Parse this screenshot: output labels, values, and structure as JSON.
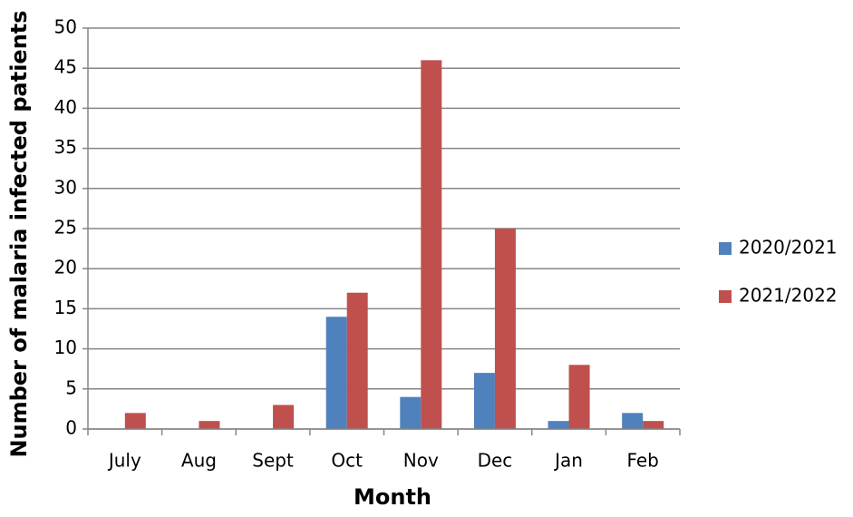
{
  "chart_data": {
    "type": "bar",
    "x_label": "Month",
    "y_label": "Number of malaria infected patients",
    "categories": [
      "July",
      "Aug",
      "Sept",
      "Oct",
      "Nov",
      "Dec",
      "Jan",
      "Feb"
    ],
    "series": [
      {
        "name": "2020/2021",
        "color": "#4f81bd",
        "values": [
          0,
          0,
          0,
          14,
          4,
          7,
          1,
          2
        ]
      },
      {
        "name": "2021/2022",
        "color": "#c0504d",
        "values": [
          2,
          1,
          3,
          17,
          46,
          25,
          8,
          1
        ]
      }
    ],
    "ylim": [
      0,
      50
    ],
    "yticks": [
      0,
      5,
      10,
      15,
      20,
      25,
      30,
      35,
      40,
      45,
      50
    ],
    "grid": true,
    "legend": "right"
  }
}
